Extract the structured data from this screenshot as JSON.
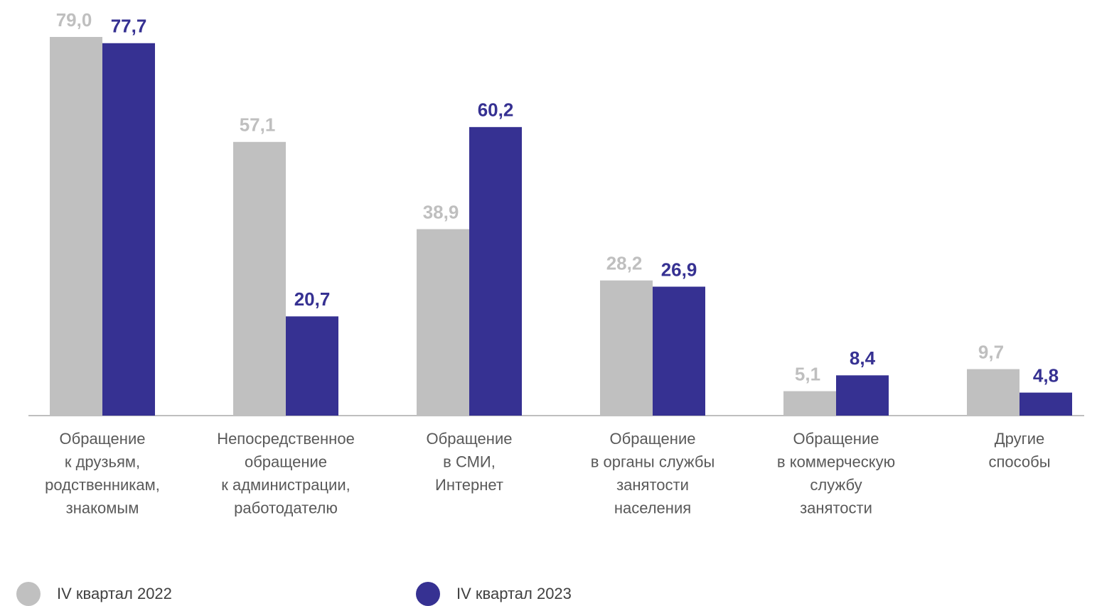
{
  "chart_data": {
    "type": "bar",
    "categories": [
      [
        "Обращение",
        "к друзьям,",
        "родственникам,",
        "знакомым"
      ],
      [
        "Непосредственное",
        "обращение",
        "к администрации,",
        "работодателю"
      ],
      [
        "Обращение",
        "в СМИ,",
        "Интернет"
      ],
      [
        "Обращение",
        "в органы службы",
        "занятости",
        "населения"
      ],
      [
        "Обращение",
        "в коммерческую",
        "службу",
        "занятости"
      ],
      [
        "Другие",
        "способы"
      ]
    ],
    "series": [
      {
        "name": "IV квартал 2022",
        "color": "#c0c0c0",
        "label_color": "#bfbfbf",
        "values": [
          79.0,
          57.1,
          38.9,
          28.2,
          5.1,
          9.7
        ],
        "value_labels": [
          "79,0",
          "57,1",
          "38,9",
          "28,2",
          "5,1",
          "9,7"
        ]
      },
      {
        "name": "IV квартал 2023",
        "color": "#363192",
        "label_color": "#363192",
        "values": [
          77.7,
          20.7,
          60.2,
          26.9,
          8.4,
          4.8
        ],
        "value_labels": [
          "77,7",
          "20,7",
          "60,2",
          "26,9",
          "8,4",
          "4,8"
        ]
      }
    ],
    "grid": false
  }
}
